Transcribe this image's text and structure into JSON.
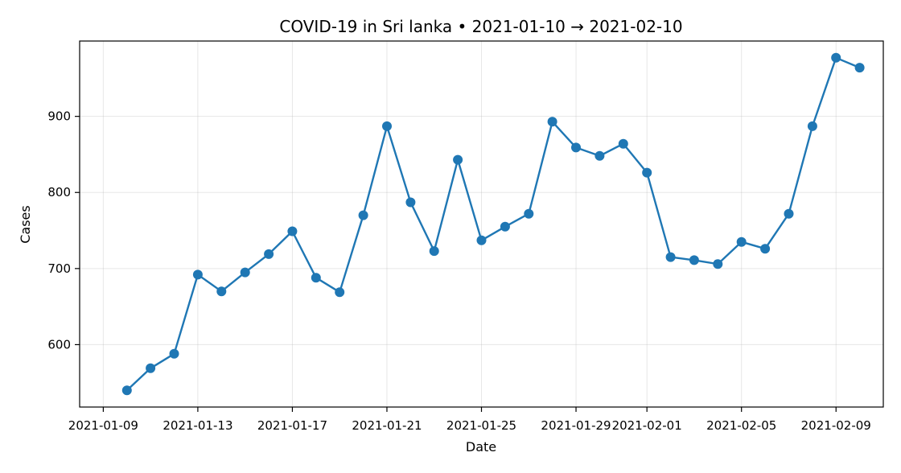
{
  "chart_data": {
    "type": "line",
    "title": "COVID-19 in Sri lanka • 2021-01-10 → 2021-02-10",
    "xlabel": "Date",
    "ylabel": "Cases",
    "x": [
      "2021-01-10",
      "2021-01-11",
      "2021-01-12",
      "2021-01-13",
      "2021-01-14",
      "2021-01-15",
      "2021-01-16",
      "2021-01-17",
      "2021-01-18",
      "2021-01-19",
      "2021-01-20",
      "2021-01-21",
      "2021-01-22",
      "2021-01-23",
      "2021-01-24",
      "2021-01-25",
      "2021-01-26",
      "2021-01-27",
      "2021-01-28",
      "2021-01-29",
      "2021-01-30",
      "2021-01-31",
      "2021-02-01",
      "2021-02-02",
      "2021-02-03",
      "2021-02-04",
      "2021-02-05",
      "2021-02-06",
      "2021-02-07",
      "2021-02-08",
      "2021-02-09",
      "2021-02-10"
    ],
    "series": [
      {
        "values": [
          540,
          569,
          588,
          692,
          670,
          695,
          719,
          749,
          688,
          669,
          770,
          887,
          787,
          723,
          843,
          737,
          755,
          772,
          893,
          859,
          848,
          864,
          826,
          715,
          711,
          706,
          735,
          726,
          772,
          887,
          977,
          964
        ],
        "color": "#1f77b4"
      }
    ],
    "x_ticks": [
      "2021-01-09",
      "2021-01-13",
      "2021-01-17",
      "2021-01-21",
      "2021-01-25",
      "2021-01-29",
      "2021-02-01",
      "2021-02-05",
      "2021-02-09"
    ],
    "y_ticks": [
      600,
      700,
      800,
      900
    ],
    "xlim": [
      "2021-01-08",
      "2021-02-11"
    ],
    "ylim": [
      518,
      999
    ],
    "grid": true,
    "marker": "circle"
  }
}
